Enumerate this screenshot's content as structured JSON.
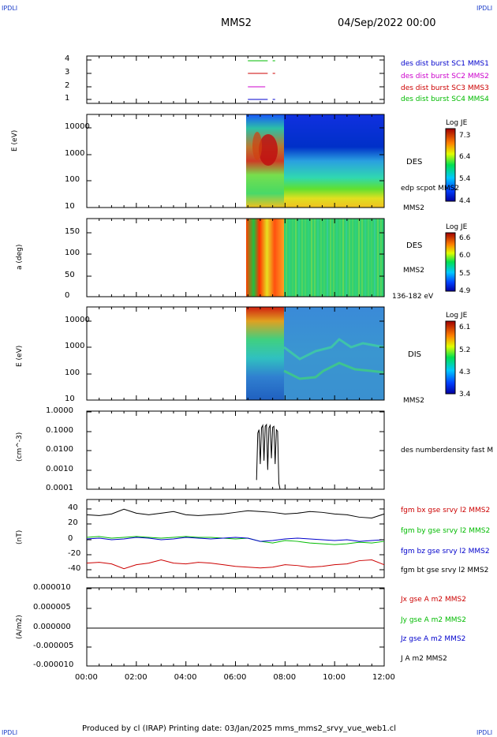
{
  "corners": {
    "tl": "IPDLI",
    "tr": "IPDLI",
    "bl": "IPDLI",
    "br": "IPDLI"
  },
  "header": {
    "spacecraft": "MMS2",
    "datetime": "04/Sep/2022 00:00"
  },
  "footer": {
    "text": "Produced by cl (IRAP)   Printing date: 03/Jan/2025   mms_mms2_srvy_vue_web1.cl"
  },
  "chart_data": [
    {
      "type": "line",
      "panel": "availability",
      "yticks": [
        "1",
        "2",
        "3",
        "4"
      ],
      "legend": [
        {
          "text": "des dist burst SC1 MMS1",
          "color": "#0000cc"
        },
        {
          "text": "des dist burst SC2 MMS2",
          "color": "#cc00cc"
        },
        {
          "text": "des dist burst SC3 MMS3",
          "color": "#cc0000"
        },
        {
          "text": "des dist burst SC4 MMS4",
          "color": "#00bb00"
        }
      ],
      "series": [
        {
          "level": 4,
          "color": "#00bb00",
          "segments": [
            [
              6.5,
              7.3
            ],
            [
              7.5,
              7.6
            ]
          ]
        },
        {
          "level": 3,
          "color": "#cc0000",
          "segments": [
            [
              6.5,
              7.3
            ],
            [
              7.5,
              7.6
            ]
          ]
        },
        {
          "level": 2,
          "color": "#cc00cc",
          "segments": [
            [
              6.5,
              7.2
            ]
          ]
        },
        {
          "level": 1,
          "color": "#0000cc",
          "segments": [
            [
              6.5,
              7.3
            ],
            [
              7.5,
              7.6
            ]
          ]
        }
      ]
    },
    {
      "type": "heatmap",
      "panel": "des-energy",
      "ylabel": "E (eV)",
      "yscale": "log",
      "ylim": [
        10,
        30000
      ],
      "yticks": [
        "10",
        "100",
        "1000",
        "10000"
      ],
      "right_labels": [
        "DES",
        "edp scpot MMS2",
        "MMS2"
      ],
      "colorbar": {
        "title": "Log JE",
        "ticks": [
          "7.3",
          "6.4",
          "5.4",
          "4.4"
        ]
      }
    },
    {
      "type": "heatmap",
      "panel": "des-pitch",
      "ylabel": "a (deg)",
      "ylim": [
        0,
        180
      ],
      "yticks": [
        "0",
        "50",
        "100",
        "150"
      ],
      "right_labels": [
        "DES",
        "MMS2",
        "136-182 eV"
      ],
      "colorbar": {
        "title": "Log JE",
        "ticks": [
          "6.6",
          "6.0",
          "5.5",
          "4.9"
        ]
      }
    },
    {
      "type": "heatmap",
      "panel": "dis-energy",
      "ylabel": "E (eV)",
      "yscale": "log",
      "ylim": [
        10,
        30000
      ],
      "yticks": [
        "10",
        "100",
        "1000",
        "10000"
      ],
      "right_labels": [
        "DIS",
        "MMS2"
      ],
      "colorbar": {
        "title": "Log JE",
        "ticks": [
          "6.1",
          "5.2",
          "4.3",
          "3.4"
        ]
      }
    },
    {
      "type": "line",
      "panel": "density",
      "ylabel": "(cm^-3)",
      "yscale": "log",
      "ylim": [
        0.0001,
        1.0
      ],
      "yticks": [
        "0.0001",
        "0.0010",
        "0.0100",
        "0.1000",
        "1.0000"
      ],
      "legend": [
        {
          "text": "des numberdensity fast M",
          "color": "#000000"
        }
      ],
      "x": [
        6.85,
        6.9,
        6.95,
        7.0,
        7.05,
        7.1,
        7.15,
        7.2,
        7.25,
        7.3,
        7.35,
        7.4,
        7.45,
        7.5,
        7.55,
        7.6,
        7.65,
        7.7,
        7.75,
        7.8
      ],
      "y": [
        0.0003,
        0.08,
        0.12,
        0.002,
        0.15,
        0.2,
        0.003,
        0.18,
        0.22,
        0.001,
        0.15,
        0.2,
        0.004,
        0.16,
        0.18,
        0.002,
        0.12,
        0.1,
        0.0002,
        0.0001
      ]
    },
    {
      "type": "line",
      "panel": "magnetic-field",
      "ylabel": "(nT)",
      "ylim": [
        -48,
        48
      ],
      "yticks": [
        "-40",
        "-20",
        "0",
        "20",
        "40"
      ],
      "legend": [
        {
          "text": "fgm bx gse srvy l2 MMS2",
          "color": "#cc0000"
        },
        {
          "text": "fgm by gse srvy l2 MMS2",
          "color": "#00bb00"
        },
        {
          "text": "fgm bz gse srvy l2 MMS2",
          "color": "#0000cc"
        },
        {
          "text": "fgm bt gse srvy l2 MMS2",
          "color": "#000000"
        }
      ],
      "x": [
        0,
        0.5,
        1,
        1.5,
        2,
        2.5,
        3,
        3.5,
        4,
        4.5,
        5,
        5.5,
        6,
        6.5,
        7,
        7.5,
        8,
        8.5,
        9,
        9.5,
        10,
        10.5,
        11,
        11.5,
        12
      ],
      "series": [
        {
          "name": "bt",
          "color": "#000000",
          "values": [
            30,
            29,
            31,
            37,
            32,
            30,
            32,
            34,
            30,
            29,
            30,
            31,
            33,
            35,
            34,
            33,
            31,
            32,
            34,
            33,
            31,
            30,
            27,
            26,
            31
          ]
        },
        {
          "name": "bx",
          "color": "#cc0000",
          "values": [
            -30,
            -29,
            -31,
            -37,
            -32,
            -30,
            -26,
            -30,
            -31,
            -29,
            -30,
            -32,
            -34,
            -35,
            -36,
            -35,
            -32,
            -33,
            -35,
            -34,
            -32,
            -31,
            -27,
            -26,
            -32
          ]
        },
        {
          "name": "by",
          "color": "#00bb00",
          "values": [
            2,
            3,
            1,
            2,
            3,
            2,
            1,
            2,
            3,
            2,
            2,
            1,
            0,
            1,
            -3,
            -5,
            -2,
            -3,
            -5,
            -6,
            -7,
            -6,
            -4,
            -5,
            -3
          ]
        },
        {
          "name": "bz",
          "color": "#0000cc",
          "values": [
            0,
            1,
            -1,
            0,
            2,
            1,
            -1,
            0,
            2,
            1,
            0,
            1,
            2,
            1,
            -3,
            -2,
            0,
            1,
            0,
            -1,
            -2,
            -1,
            -3,
            -2,
            -1
          ]
        }
      ]
    },
    {
      "type": "line",
      "panel": "current-density",
      "ylabel": "(A/m2)",
      "ylim": [
        -1e-05,
        1e-05
      ],
      "yticks": [
        "-0.000010",
        "-0.000005",
        "0.000000",
        "0.000005",
        "0.000010"
      ],
      "legend": [
        {
          "text": "Jx gse A m2 MMS2",
          "color": "#cc0000"
        },
        {
          "text": "Jy gse A m2 MMS2",
          "color": "#00bb00"
        },
        {
          "text": "Jz gse A m2 MMS2",
          "color": "#0000cc"
        },
        {
          "text": "J A m2 MMS2",
          "color": "#000000"
        }
      ],
      "x": [
        0,
        12
      ],
      "y": [
        0,
        0
      ],
      "xlim": [
        0,
        12
      ],
      "xticks": [
        "00:00",
        "02:00",
        "04:00",
        "06:00",
        "08:00",
        "10:00",
        "12:00"
      ]
    }
  ]
}
